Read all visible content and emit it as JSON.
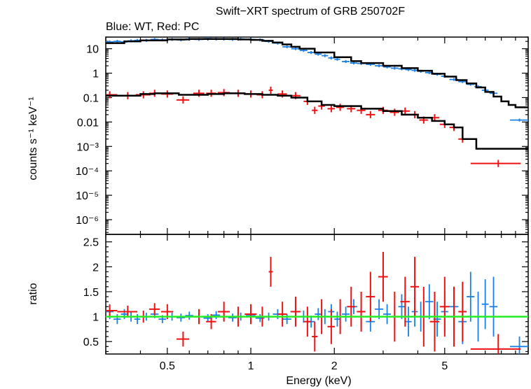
{
  "colors": {
    "wt": "#1a7fe6",
    "pc": "#ee1111",
    "model": "#000000",
    "ratio_line": "#22ee22",
    "axis": "#000000"
  },
  "chart_data": [
    {
      "type": "scatter",
      "title": "Swift−XRT spectrum of GRB 250702F",
      "subtitle": "Blue: WT, Red: PC",
      "xlabel": "",
      "ylabel": "counts s⁻¹ keV⁻¹",
      "xscale": "log",
      "yscale": "log",
      "xlim": [
        0.3,
        10
      ],
      "ylim": [
        2.5e-07,
        30
      ],
      "yticks": [
        {
          "value": 10,
          "label": "10"
        },
        {
          "value": 1,
          "label": "1"
        },
        {
          "value": 0.1,
          "label": "0.1"
        },
        {
          "value": 0.01,
          "label": "0.01"
        },
        {
          "value": 0.001,
          "label": "10⁻³"
        },
        {
          "value": 0.0001,
          "label": "10⁻⁴"
        },
        {
          "value": 1e-05,
          "label": "10⁻⁵"
        },
        {
          "value": 1e-06,
          "label": "10⁻⁶"
        }
      ],
      "series": [
        {
          "color": "#1a7fe6",
          "x": [
            0.31,
            0.33,
            0.35,
            0.37,
            0.39,
            0.42,
            0.45,
            0.48,
            0.52,
            0.56,
            0.6,
            0.65,
            0.7,
            0.75,
            0.8,
            0.86,
            0.92,
            1.0,
            1.08,
            1.16,
            1.25,
            1.35,
            1.45,
            1.55,
            1.65,
            1.75,
            1.85,
            1.95,
            2.05,
            2.2,
            2.35,
            2.5,
            2.7,
            2.9,
            3.1,
            3.3,
            3.5,
            3.7,
            3.9,
            4.1,
            4.4,
            4.7,
            5.0,
            5.4,
            5.8,
            6.2,
            6.6,
            7.0,
            7.5,
            9.3
          ],
          "y": [
            19,
            20,
            19,
            21,
            22,
            22,
            24,
            23,
            24,
            23,
            25,
            24,
            26,
            25,
            25,
            24,
            25,
            24,
            23,
            20,
            17,
            12,
            10,
            8.5,
            7,
            6,
            5.2,
            4.2,
            3.7,
            3.0,
            2.6,
            2.5,
            2.3,
            2.0,
            1.8,
            1.6,
            1.5,
            1.4,
            1.3,
            1.2,
            1.05,
            0.9,
            0.75,
            0.55,
            0.45,
            0.35,
            0.28,
            0.2,
            0.15,
            0.012
          ],
          "xerr": [
            0.01,
            0.01,
            0.01,
            0.01,
            0.01,
            0.015,
            0.015,
            0.015,
            0.02,
            0.02,
            0.02,
            0.025,
            0.025,
            0.025,
            0.03,
            0.03,
            0.03,
            0.04,
            0.04,
            0.04,
            0.05,
            0.05,
            0.05,
            0.05,
            0.05,
            0.05,
            0.05,
            0.05,
            0.05,
            0.07,
            0.07,
            0.08,
            0.1,
            0.1,
            0.1,
            0.1,
            0.1,
            0.1,
            0.1,
            0.1,
            0.15,
            0.15,
            0.15,
            0.2,
            0.2,
            0.2,
            0.2,
            0.2,
            0.25,
            0.7
          ],
          "yerr_frac": 0.15
        },
        {
          "color": "#ee1111",
          "x": [
            0.31,
            0.36,
            0.41,
            0.45,
            0.5,
            0.57,
            0.65,
            0.72,
            0.8,
            0.9,
            1.0,
            1.1,
            1.18,
            1.3,
            1.45,
            1.6,
            1.7,
            1.8,
            1.95,
            2.1,
            2.3,
            2.5,
            2.7,
            3.0,
            3.3,
            3.6,
            3.9,
            4.2,
            4.6,
            5.0,
            5.4,
            5.8,
            7.8
          ],
          "y": [
            0.13,
            0.12,
            0.13,
            0.15,
            0.14,
            0.08,
            0.15,
            0.15,
            0.16,
            0.15,
            0.14,
            0.13,
            0.2,
            0.14,
            0.12,
            0.07,
            0.03,
            0.045,
            0.035,
            0.04,
            0.035,
            0.03,
            0.02,
            0.03,
            0.025,
            0.028,
            0.02,
            0.012,
            0.015,
            0.008,
            0.006,
            0.002,
            0.0002
          ],
          "xerr": [
            0.02,
            0.03,
            0.025,
            0.02,
            0.025,
            0.03,
            0.03,
            0.03,
            0.04,
            0.05,
            0.05,
            0.05,
            0.02,
            0.05,
            0.06,
            0.05,
            0.04,
            0.05,
            0.06,
            0.07,
            0.08,
            0.09,
            0.1,
            0.12,
            0.13,
            0.14,
            0.14,
            0.15,
            0.18,
            0.2,
            0.2,
            0.2,
            1.6
          ],
          "yerr_frac": 0.4
        }
      ],
      "model": [
        {
          "color": "#000000",
          "x": [
            0.3,
            0.35,
            0.4,
            0.5,
            0.6,
            0.7,
            0.8,
            0.9,
            1.0,
            1.1,
            1.2,
            1.3,
            1.4,
            1.5,
            1.7,
            2.0,
            2.3,
            2.5,
            3.0,
            3.5,
            4.0,
            4.5,
            5.0,
            5.5,
            6.0,
            6.5,
            7.0,
            7.5,
            8.0,
            8.5,
            9.0,
            10.0
          ],
          "y": [
            17,
            20,
            22,
            24,
            25,
            25,
            25,
            24,
            23,
            21,
            18,
            15,
            12,
            10,
            7,
            4.5,
            3.1,
            2.6,
            2.0,
            1.6,
            1.25,
            0.95,
            0.72,
            0.52,
            0.38,
            0.26,
            0.17,
            0.11,
            0.07,
            0.05,
            0.04,
            0.04
          ]
        },
        {
          "color": "#000000",
          "x": [
            0.3,
            0.4,
            0.45,
            0.55,
            0.7,
            0.8,
            0.95,
            1.1,
            1.25,
            1.4,
            1.6,
            1.8,
            2.0,
            2.5,
            3.0,
            3.5,
            4.0,
            4.5,
            5.0,
            5.4,
            5.8,
            6.5,
            10.0
          ],
          "y": [
            0.12,
            0.14,
            0.15,
            0.13,
            0.14,
            0.15,
            0.14,
            0.13,
            0.12,
            0.1,
            0.07,
            0.05,
            0.045,
            0.035,
            0.028,
            0.02,
            0.015,
            0.011,
            0.008,
            0.006,
            0.002,
            0.0008,
            0.0008
          ]
        }
      ]
    },
    {
      "type": "scatter",
      "title": "",
      "xlabel": "Energy (keV)",
      "ylabel": "ratio",
      "xscale": "log",
      "yscale": "linear",
      "xlim": [
        0.3,
        10
      ],
      "ylim": [
        0.25,
        2.65
      ],
      "xticks": [
        {
          "value": 0.5,
          "label": "0.5"
        },
        {
          "value": 1,
          "label": "1"
        },
        {
          "value": 2,
          "label": "2"
        },
        {
          "value": 5,
          "label": "5"
        }
      ],
      "yticks": [
        {
          "value": 0.5,
          "label": "0.5"
        },
        {
          "value": 1,
          "label": "1"
        },
        {
          "value": 1.5,
          "label": "1.5"
        },
        {
          "value": 2,
          "label": "2"
        },
        {
          "value": 2.5,
          "label": "2.5"
        }
      ],
      "reference_line": 1,
      "series": [
        {
          "color": "#1a7fe6",
          "x": [
            0.31,
            0.33,
            0.35,
            0.37,
            0.39,
            0.42,
            0.45,
            0.48,
            0.52,
            0.56,
            0.6,
            0.65,
            0.7,
            0.75,
            0.8,
            0.86,
            0.92,
            1.0,
            1.08,
            1.16,
            1.25,
            1.35,
            1.45,
            1.55,
            1.65,
            1.75,
            1.85,
            1.95,
            2.05,
            2.2,
            2.35,
            2.5,
            2.7,
            2.9,
            3.1,
            3.3,
            3.5,
            3.7,
            3.9,
            4.1,
            4.4,
            4.7,
            5.0,
            5.4,
            5.8,
            6.2,
            6.6,
            7.0,
            7.5,
            9.3
          ],
          "y": [
            1.1,
            0.95,
            1.05,
            1.0,
            0.95,
            1.0,
            1.05,
            0.95,
            1.0,
            0.98,
            1.02,
            1.0,
            0.97,
            1.03,
            1.0,
            0.98,
            1.0,
            1.02,
            0.97,
            1.0,
            1.05,
            0.95,
            1.1,
            1.0,
            0.9,
            1.05,
            1.0,
            1.1,
            0.95,
            1.05,
            1.2,
            1.0,
            0.9,
            1.15,
            1.05,
            1.0,
            1.2,
            0.9,
            1.1,
            1.0,
            1.3,
            0.95,
            1.1,
            1.2,
            0.9,
            1.4,
            1.0,
            1.25,
            1.2,
            0.4
          ],
          "yerr": [
            0.15,
            0.1,
            0.1,
            0.1,
            0.1,
            0.08,
            0.08,
            0.08,
            0.08,
            0.08,
            0.08,
            0.08,
            0.08,
            0.08,
            0.08,
            0.08,
            0.08,
            0.08,
            0.08,
            0.08,
            0.1,
            0.1,
            0.1,
            0.12,
            0.12,
            0.12,
            0.15,
            0.15,
            0.15,
            0.15,
            0.15,
            0.2,
            0.2,
            0.2,
            0.2,
            0.25,
            0.25,
            0.3,
            0.3,
            0.3,
            0.35,
            0.35,
            0.4,
            0.4,
            0.45,
            0.5,
            0.5,
            0.5,
            0.6,
            0.2
          ]
        },
        {
          "color": "#ee1111",
          "x": [
            0.31,
            0.36,
            0.41,
            0.45,
            0.5,
            0.57,
            0.65,
            0.72,
            0.8,
            0.9,
            1.0,
            1.1,
            1.18,
            1.3,
            1.45,
            1.6,
            1.7,
            1.8,
            1.95,
            2.1,
            2.3,
            2.5,
            2.7,
            3.0,
            3.3,
            3.6,
            3.9,
            4.2,
            4.6,
            5.0,
            5.4,
            5.8,
            7.8
          ],
          "y": [
            1.12,
            1.1,
            1.0,
            1.15,
            1.1,
            0.55,
            1.0,
            0.9,
            1.1,
            1.0,
            1.05,
            1.0,
            1.9,
            1.05,
            1.1,
            0.9,
            0.6,
            1.0,
            0.8,
            1.0,
            1.2,
            1.1,
            1.4,
            1.8,
            1.0,
            1.3,
            1.6,
            1.0,
            0.9,
            1.2,
            1.0,
            1.1,
            0.35
          ],
          "yerr": [
            0.12,
            0.12,
            0.12,
            0.12,
            0.15,
            0.15,
            0.15,
            0.15,
            0.2,
            0.2,
            0.2,
            0.2,
            0.3,
            0.25,
            0.3,
            0.3,
            0.3,
            0.35,
            0.35,
            0.35,
            0.4,
            0.4,
            0.5,
            0.5,
            0.5,
            0.5,
            0.6,
            0.6,
            0.6,
            0.6,
            0.6,
            0.6,
            0.3
          ]
        }
      ]
    }
  ]
}
